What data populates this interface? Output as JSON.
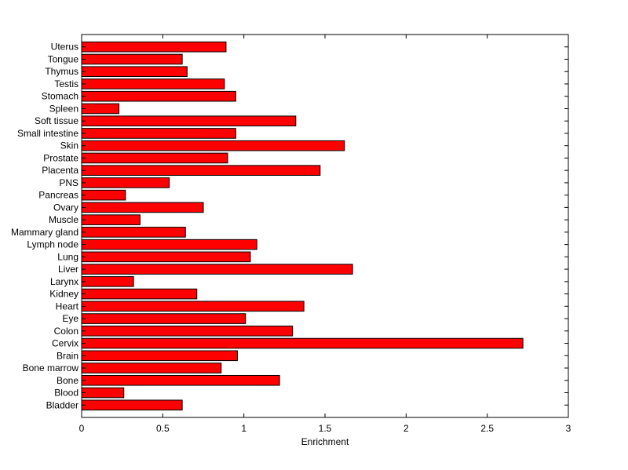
{
  "chart_data": {
    "type": "bar",
    "orientation": "horizontal",
    "title": "",
    "xlabel": "Enrichment",
    "ylabel": "",
    "xlim": [
      0,
      3
    ],
    "xticks": [
      0,
      0.5,
      1,
      1.5,
      2,
      2.5,
      3
    ],
    "xtick_labels": [
      "0",
      "0.5",
      "1",
      "1.5",
      "2",
      "2.5",
      "3"
    ],
    "grid": false,
    "legend": "none",
    "bar_color": "#ff0000",
    "edge_color": "#000000",
    "categories": [
      "Bladder",
      "Blood",
      "Bone",
      "Bone marrow",
      "Brain",
      "Cervix",
      "Colon",
      "Eye",
      "Heart",
      "Kidney",
      "Larynx",
      "Liver",
      "Lung",
      "Lymph node",
      "Mammary gland",
      "Muscle",
      "Ovary",
      "Pancreas",
      "PNS",
      "Placenta",
      "Prostate",
      "Skin",
      "Small intestine",
      "Soft tissue",
      "Spleen",
      "Stomach",
      "Testis",
      "Thymus",
      "Tongue",
      "Uterus"
    ],
    "values": [
      0.62,
      0.26,
      1.22,
      0.86,
      0.96,
      2.72,
      1.3,
      1.01,
      1.37,
      0.71,
      0.32,
      1.67,
      1.04,
      1.08,
      0.64,
      0.36,
      0.75,
      0.27,
      0.54,
      1.47,
      0.9,
      1.62,
      0.95,
      1.32,
      0.23,
      0.95,
      0.88,
      0.65,
      0.62,
      0.89
    ]
  }
}
